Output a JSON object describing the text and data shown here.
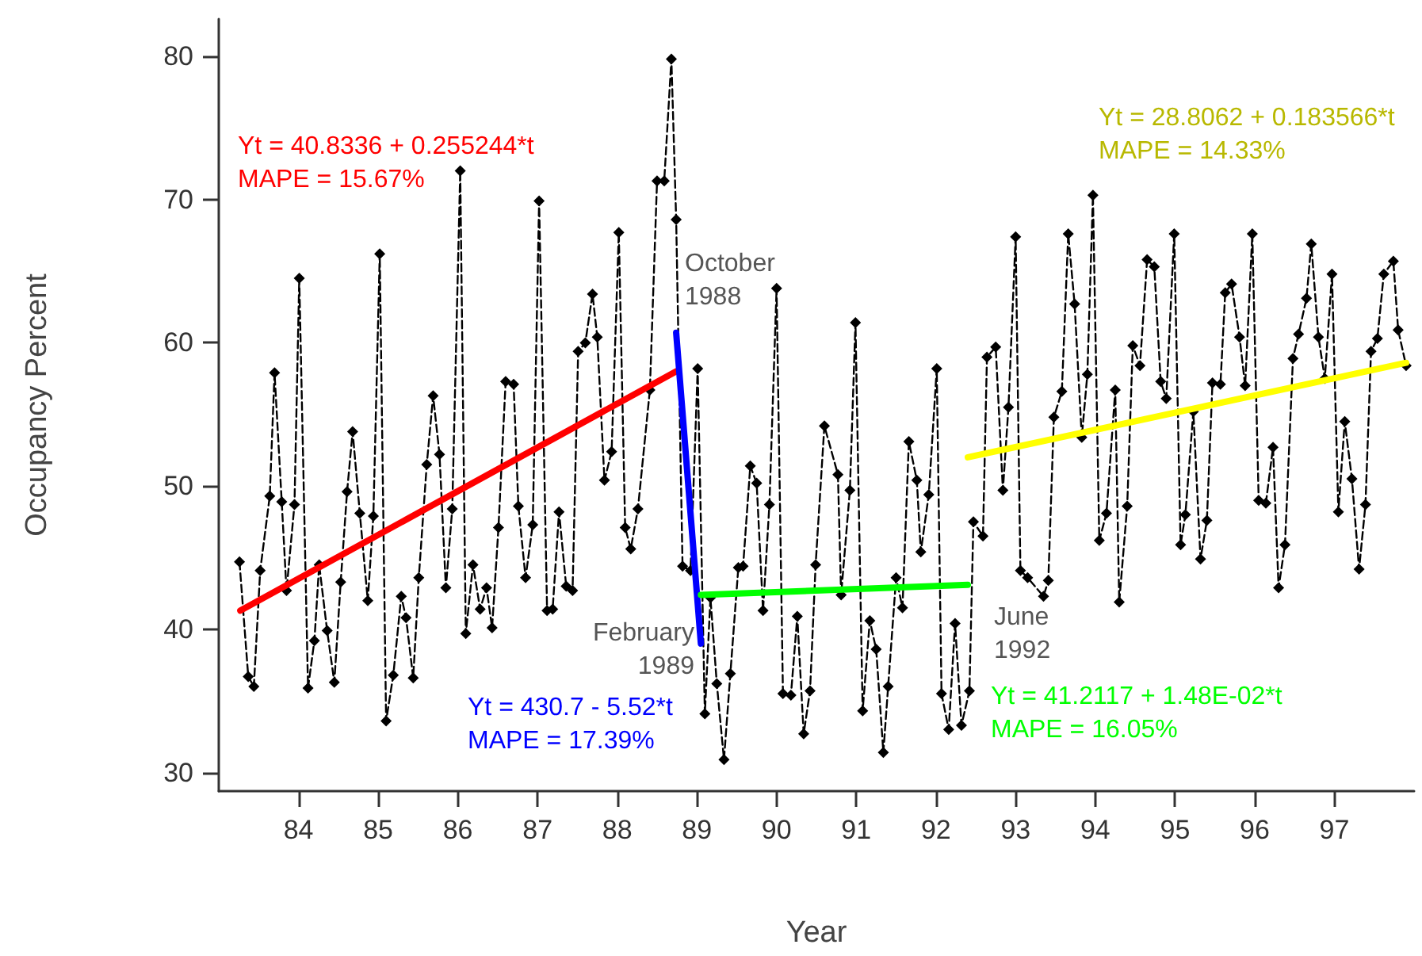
{
  "chart_data": {
    "type": "line",
    "xlabel": "Year",
    "ylabel": "Occupancy Percent",
    "xlim": [
      83,
      98
    ],
    "xticks": [
      84,
      85,
      86,
      87,
      88,
      89,
      90,
      91,
      92,
      93,
      94,
      95,
      96,
      97
    ],
    "ylim": [
      28.7,
      82.6
    ],
    "yticks": [
      30,
      40,
      50,
      60,
      70,
      80
    ],
    "grid": false,
    "marker": "diamond",
    "line_style": "dashed",
    "series": [
      {
        "color": "#000000",
        "x": [
          83.26,
          83.37,
          83.44,
          83.52,
          83.64,
          83.7,
          83.79,
          83.85,
          83.95,
          84.01,
          84.12,
          84.2,
          84.26,
          84.36,
          84.45,
          84.53,
          84.61,
          84.68,
          84.77,
          84.87,
          84.94,
          85.02,
          85.1,
          85.19,
          85.29,
          85.35,
          85.44,
          85.51,
          85.61,
          85.69,
          85.77,
          85.85,
          85.93,
          86.03,
          86.1,
          86.19,
          86.28,
          86.36,
          86.43,
          86.51,
          86.6,
          86.7,
          86.76,
          86.85,
          86.94,
          87.02,
          87.12,
          87.19,
          87.27,
          87.36,
          87.44,
          87.51,
          87.6,
          87.69,
          87.75,
          87.84,
          87.93,
          88.02,
          88.1,
          88.17,
          88.26,
          88.41,
          88.5,
          88.59,
          88.68,
          88.74,
          88.82,
          88.92,
          89.01,
          89.1,
          89.17,
          89.25,
          89.34,
          89.42,
          89.52,
          89.58,
          89.67,
          89.75,
          89.83,
          89.91,
          90.0,
          90.08,
          90.18,
          90.26,
          90.34,
          90.42,
          90.49,
          90.6,
          90.77,
          90.81,
          90.92,
          90.99,
          91.08,
          91.17,
          91.25,
          91.34,
          91.4,
          91.5,
          91.58,
          91.66,
          91.76,
          91.81,
          91.91,
          92.01,
          92.07,
          92.16,
          92.24,
          92.32,
          92.42,
          92.47,
          92.59,
          92.64,
          92.75,
          92.84,
          92.91,
          93.0,
          93.06,
          93.15,
          93.35,
          93.41,
          93.48,
          93.58,
          93.66,
          93.74,
          93.83,
          93.9,
          93.97,
          94.05,
          94.14,
          94.25,
          94.3,
          94.4,
          94.47,
          94.56,
          94.65,
          94.74,
          94.82,
          94.89,
          94.99,
          95.07,
          95.13,
          95.23,
          95.32,
          95.4,
          95.47,
          95.57,
          95.63,
          95.71,
          95.81,
          95.88,
          95.97,
          96.05,
          96.14,
          96.23,
          96.3,
          96.38,
          96.48,
          96.55,
          96.65,
          96.71,
          96.8,
          96.88,
          96.97,
          97.05,
          97.13,
          97.22,
          97.31,
          97.39,
          97.46,
          97.54,
          97.62,
          97.74,
          97.8,
          97.9
        ],
        "values": [
          44.7,
          36.7,
          36.0,
          44.1,
          49.3,
          57.9,
          48.9,
          42.7,
          48.7,
          64.5,
          35.9,
          39.2,
          44.5,
          39.9,
          36.3,
          43.3,
          49.6,
          53.8,
          48.1,
          42.0,
          47.9,
          66.2,
          33.6,
          36.8,
          42.3,
          40.8,
          36.6,
          43.6,
          51.5,
          56.3,
          52.2,
          42.9,
          48.4,
          72.0,
          39.7,
          44.5,
          41.4,
          42.9,
          40.1,
          47.1,
          57.3,
          57.1,
          48.6,
          43.6,
          47.3,
          69.9,
          41.3,
          41.4,
          48.2,
          43.0,
          42.7,
          59.4,
          60.0,
          63.4,
          60.4,
          50.4,
          52.4,
          67.7,
          47.1,
          45.6,
          48.4,
          56.7,
          71.3,
          71.3,
          79.8,
          68.6,
          44.4,
          44.1,
          58.2,
          34.1,
          42.2,
          36.2,
          30.9,
          36.9,
          44.3,
          44.4,
          51.4,
          50.2,
          41.3,
          48.7,
          63.8,
          35.5,
          35.4,
          40.9,
          32.7,
          35.7,
          44.5,
          54.2,
          50.8,
          42.4,
          49.7,
          61.4,
          34.3,
          40.6,
          38.6,
          31.4,
          36.0,
          43.6,
          41.5,
          53.1,
          50.4,
          45.4,
          49.4,
          58.2,
          35.5,
          33.0,
          40.4,
          33.3,
          35.7,
          47.5,
          46.5,
          59.0,
          59.7,
          49.7,
          55.5,
          67.4,
          44.1,
          43.6,
          42.3,
          43.4,
          54.8,
          56.6,
          67.6,
          62.7,
          53.4,
          57.8,
          70.3,
          46.2,
          48.1,
          56.7,
          41.9,
          48.6,
          59.8,
          58.4,
          65.8,
          65.3,
          57.3,
          56.1,
          67.6,
          45.9,
          48.0,
          55.2,
          44.9,
          47.6,
          57.2,
          57.1,
          63.5,
          64.1,
          60.4,
          57.0,
          67.6,
          49.0,
          48.8,
          52.7,
          42.9,
          45.9,
          58.9,
          60.6,
          63.1,
          66.9,
          60.4,
          57.5,
          64.8,
          48.2,
          54.5,
          50.5,
          44.2,
          48.7,
          59.4,
          60.3,
          64.8,
          65.7,
          60.9,
          58.4
        ]
      },
      {
        "type": "line",
        "color": "#ff0000",
        "marker": "none",
        "line_style": "solid",
        "x": [
          83.27,
          88.74
        ],
        "values": [
          41.3,
          58.0
        ]
      },
      {
        "type": "line",
        "color": "#0000ff",
        "marker": "none",
        "line_style": "solid",
        "x": [
          88.74,
          89.05
        ],
        "values": [
          60.7,
          39.0
        ]
      },
      {
        "type": "line",
        "color": "#00ff00",
        "marker": "none",
        "line_style": "solid",
        "x": [
          89.05,
          92.4
        ],
        "values": [
          42.4,
          43.1
        ]
      },
      {
        "type": "line",
        "color": "#ffff00",
        "marker": "none",
        "line_style": "solid",
        "x": [
          92.4,
          97.9
        ],
        "values": [
          52.0,
          58.6
        ]
      }
    ],
    "annotations": [
      "Yt = 40.8336 + 0.255244*t\nMAPE = 15.67%",
      "Yt = 430.7 - 5.52*t\nMAPE = 17.39%",
      "Yt = 41.2117 + 1.48E-02*t\nMAPE = 16.05%",
      "Yt = 28.8062 + 0.183566*t\nMAPE = 14.33%",
      "October\n1988",
      "February\n1989",
      "June\n1992"
    ]
  }
}
